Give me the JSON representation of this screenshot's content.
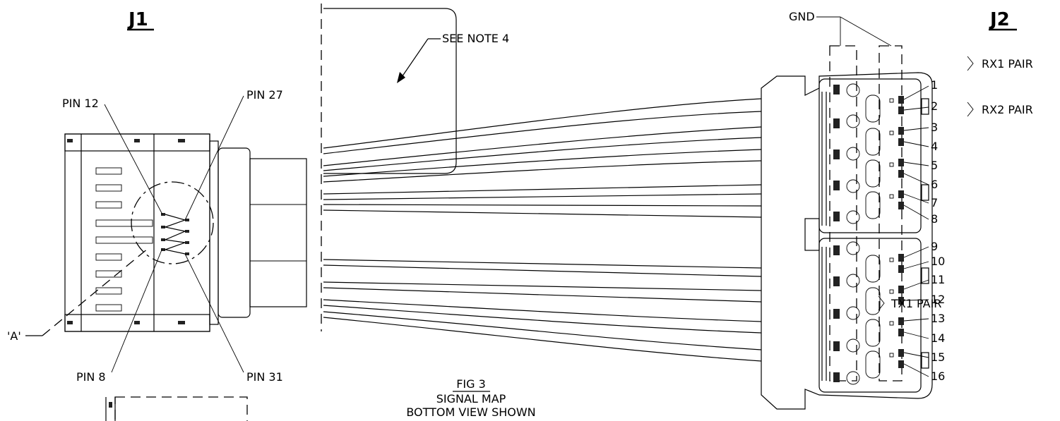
{
  "connectors": {
    "left": {
      "title": "J1"
    },
    "right": {
      "title": "J2"
    }
  },
  "callouts": {
    "pin12": "PIN 12",
    "pin27": "PIN 27",
    "pin8": "PIN 8",
    "pin31": "PIN 31",
    "detail_a": "'A'",
    "see_note": "SEE NOTE 4",
    "gnd": "GND"
  },
  "pairs": {
    "rx1": "RX1 PAIR",
    "rx2": "RX2 PAIR",
    "tx1": "TX1 PAIR"
  },
  "pin_numbers": [
    "1",
    "2",
    "3",
    "4",
    "5",
    "6",
    "7",
    "8",
    "9",
    "10",
    "11",
    "12",
    "13",
    "14",
    "15",
    "16"
  ],
  "caption": {
    "fig": "FIG 3",
    "line1": "SIGNAL MAP",
    "line2": "BOTTOM VIEW SHOWN"
  }
}
